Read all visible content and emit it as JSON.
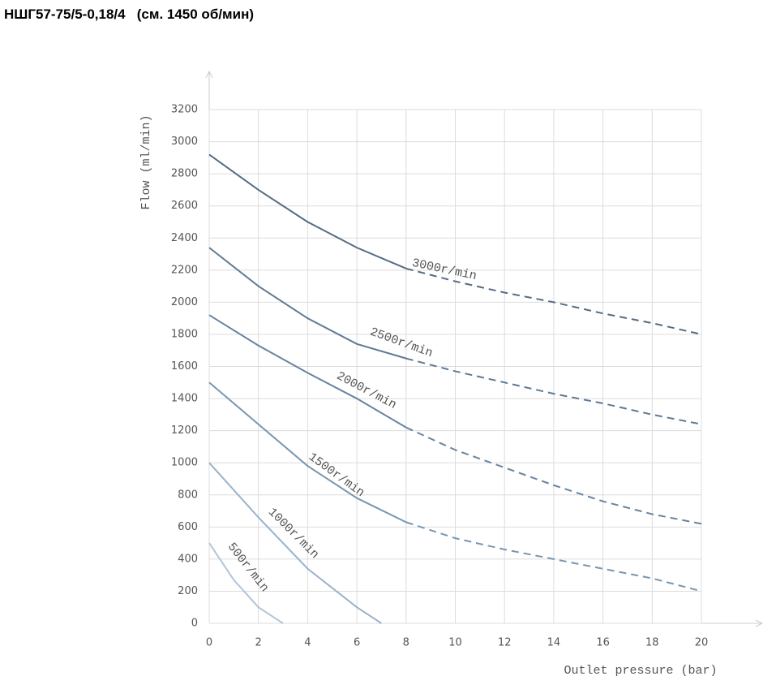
{
  "chart_data": {
    "type": "line",
    "title": "НШГ57-75/5-0,18/4   (см. 1450 об/мин)",
    "x_label": "Outlet pressure (bar)",
    "y_label": "Flow (ml/min)",
    "xlim": [
      0,
      20
    ],
    "xticks": [
      0,
      2,
      4,
      6,
      8,
      10,
      12,
      14,
      16,
      18,
      20
    ],
    "ylim": [
      0,
      3200
    ],
    "yticks": [
      0,
      200,
      400,
      600,
      800,
      1000,
      1200,
      1400,
      1600,
      1800,
      2000,
      2200,
      2400,
      2600,
      2800,
      3000,
      3200
    ],
    "grid": true,
    "dashed_beyond_x": 8,
    "series": [
      {
        "name": "3000r/min",
        "color": "#566b82",
        "x": [
          0,
          2,
          4,
          6,
          8,
          10,
          12,
          14,
          16,
          18,
          20
        ],
        "values": [
          2920,
          2700,
          2500,
          2340,
          2210,
          2130,
          2060,
          2000,
          1930,
          1870,
          1800
        ]
      },
      {
        "name": "2500r/min",
        "color": "#5f7a94",
        "x": [
          0,
          2,
          4,
          6,
          8,
          10,
          12,
          14,
          16,
          18,
          20
        ],
        "values": [
          2340,
          2100,
          1900,
          1740,
          1650,
          1570,
          1500,
          1430,
          1370,
          1300,
          1240
        ]
      },
      {
        "name": "2000r/min",
        "color": "#6884a0",
        "x": [
          0,
          2,
          4,
          6,
          8,
          10,
          12,
          14,
          16,
          18,
          20
        ],
        "values": [
          1920,
          1730,
          1560,
          1400,
          1220,
          1080,
          970,
          860,
          760,
          680,
          620
        ]
      },
      {
        "name": "1500r/min",
        "color": "#7896b2",
        "x": [
          0,
          2,
          4,
          6,
          8,
          10,
          12,
          14,
          16,
          18,
          20
        ],
        "values": [
          1500,
          1240,
          980,
          780,
          630,
          530,
          460,
          400,
          340,
          280,
          200
        ]
      },
      {
        "name": "1000r/min",
        "color": "#9ab2ca",
        "x": [
          0,
          2,
          4,
          6,
          7
        ],
        "values": [
          1000,
          660,
          340,
          100,
          0
        ]
      },
      {
        "name": "500r/min",
        "color": "#b3c5d7",
        "x": [
          0,
          1,
          2,
          3
        ],
        "values": [
          500,
          270,
          100,
          0
        ]
      }
    ]
  }
}
